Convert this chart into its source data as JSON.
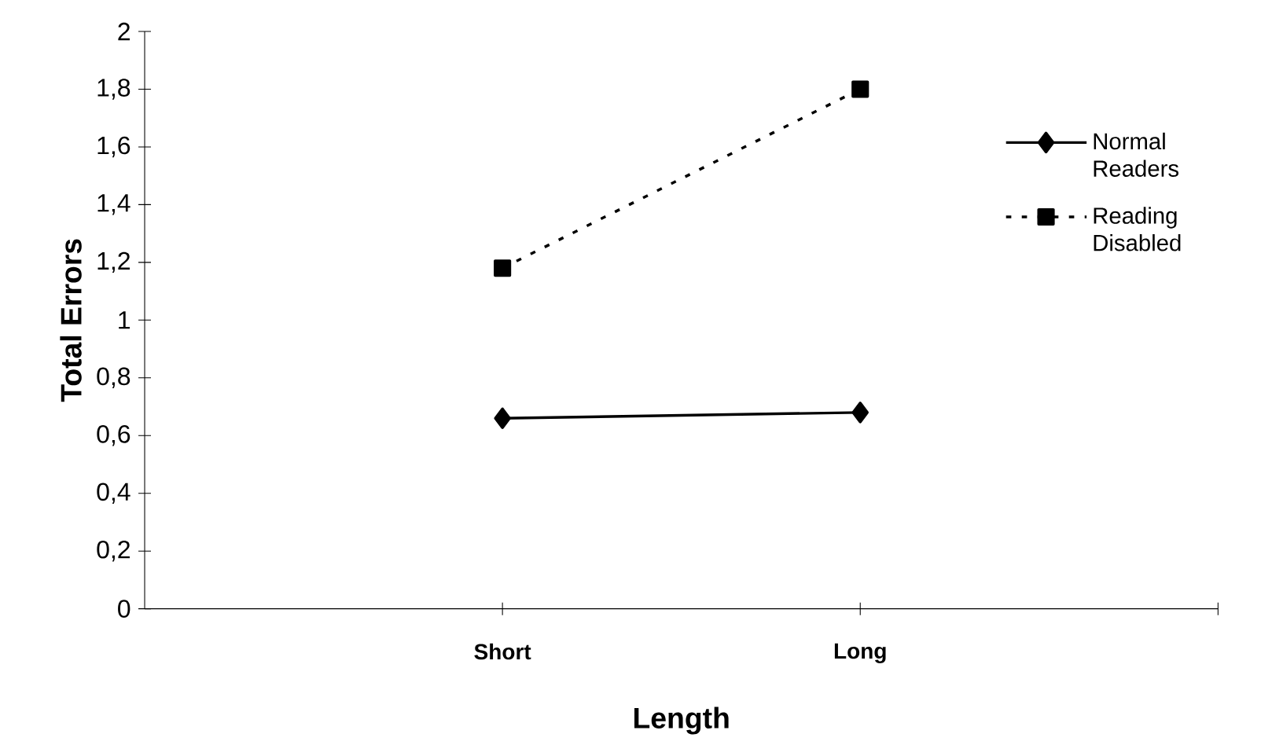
{
  "chart_data": {
    "type": "line",
    "xlabel": "Length",
    "ylabel": "Total Errors",
    "categories": [
      "Short",
      "Long"
    ],
    "series": [
      {
        "name": "Normal Readers",
        "color": "#000000",
        "values": [
          0.66,
          0.68
        ],
        "marker": "diamond",
        "line_style": "solid"
      },
      {
        "name": "Reading Disabled",
        "color": "#000000",
        "values": [
          1.18,
          1.8
        ],
        "marker": "square",
        "line_style": "dotted"
      }
    ],
    "ylim": [
      0,
      2
    ],
    "yticks": [
      0,
      {
        "value": 0.2,
        "label": "0,2"
      },
      {
        "value": 0.4,
        "label": "0,4"
      },
      {
        "value": 0.6,
        "label": "0,6"
      },
      {
        "value": 0.8,
        "label": "0,8"
      },
      1,
      {
        "value": 1.2,
        "label": "1,2"
      },
      {
        "value": 1.4,
        "label": "1,4"
      },
      {
        "value": 1.6,
        "label": "1,6"
      },
      {
        "value": 1.8,
        "label": "1,8"
      },
      2
    ],
    "grid": false,
    "legend": "top right"
  }
}
